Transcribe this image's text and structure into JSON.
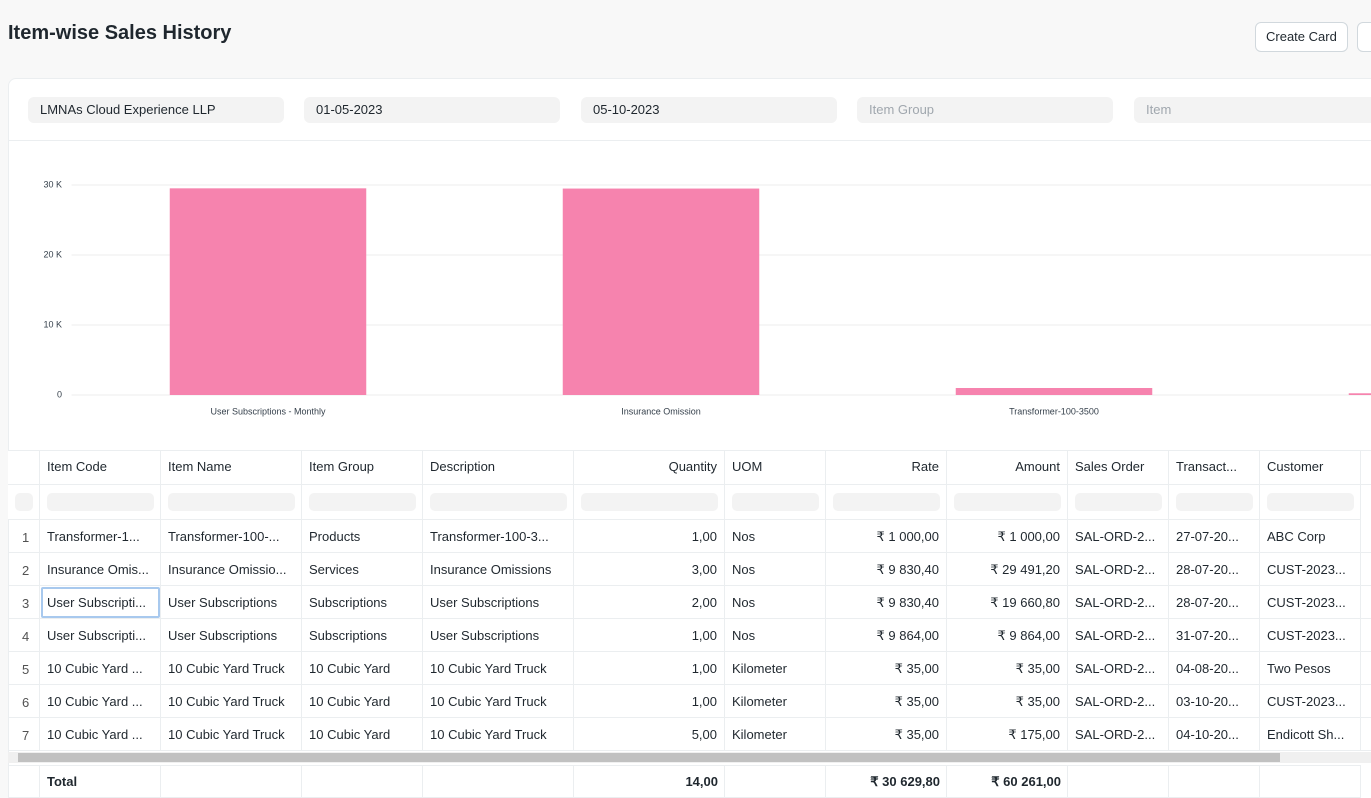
{
  "header": {
    "title": "Item-wise Sales History",
    "button": "Create Card"
  },
  "filters": {
    "values": [
      "LMNAs Cloud Experience LLP",
      "01-05-2023",
      "05-10-2023"
    ],
    "placeholders": [
      "Item Group",
      "Item"
    ]
  },
  "chart_data": {
    "type": "bar",
    "categories": [
      "User Subscriptions - Monthly",
      "Insurance Omission",
      "Transformer-100-3500",
      null
    ],
    "values": [
      29524.8,
      29491.2,
      1000,
      245
    ],
    "color": "#f683ae",
    "ylim": [
      0,
      30000
    ],
    "yticks": [
      0,
      {
        "value": 10000,
        "label": "10 K"
      },
      {
        "value": 20000,
        "label": "20 K"
      },
      {
        "value": 30000,
        "label": "30 K"
      }
    ],
    "grid": true
  },
  "table": {
    "columns": [
      "Item Code",
      "Item Name",
      "Item Group",
      "Description",
      "Quantity",
      "UOM",
      "Rate",
      "Amount",
      "Sales Order",
      "Transact...",
      "Customer"
    ],
    "rows": [
      {
        "no": 1,
        "cells": [
          "Transformer-1...",
          "Transformer-100-...",
          "Products",
          "Transformer-100-3...",
          "1,00",
          "Nos",
          "₹ 1 000,00",
          "₹ 1 000,00",
          "SAL-ORD-2...",
          "27-07-20...",
          "ABC Corp"
        ]
      },
      {
        "no": 2,
        "cells": [
          "Insurance Omis...",
          "Insurance Omissio...",
          "Services",
          "Insurance Omissions",
          "3,00",
          "Nos",
          "₹ 9 830,40",
          "₹ 29 491,20",
          "SAL-ORD-2...",
          "28-07-20...",
          "CUST-2023..."
        ]
      },
      {
        "no": 3,
        "cells": [
          "User Subscripti...",
          "User Subscriptions",
          "Subscriptions",
          "User Subscriptions",
          "2,00",
          "Nos",
          "₹ 9 830,40",
          "₹ 19 660,80",
          "SAL-ORD-2...",
          "28-07-20...",
          "CUST-2023..."
        ]
      },
      {
        "no": 4,
        "cells": [
          "User Subscripti...",
          "User Subscriptions",
          "Subscriptions",
          "User Subscriptions",
          "1,00",
          "Nos",
          "₹ 9 864,00",
          "₹ 9 864,00",
          "SAL-ORD-2...",
          "31-07-20...",
          "CUST-2023..."
        ]
      },
      {
        "no": 5,
        "cells": [
          "10 Cubic Yard ...",
          "10 Cubic Yard Truck",
          "10 Cubic Yard",
          "10 Cubic Yard Truck",
          "1,00",
          "Kilometer",
          "₹ 35,00",
          "₹ 35,00",
          "SAL-ORD-2...",
          "04-08-20...",
          "Two Pesos"
        ]
      },
      {
        "no": 6,
        "cells": [
          "10 Cubic Yard ...",
          "10 Cubic Yard Truck",
          "10 Cubic Yard",
          "10 Cubic Yard Truck",
          "1,00",
          "Kilometer",
          "₹ 35,00",
          "₹ 35,00",
          "SAL-ORD-2...",
          "03-10-20...",
          "CUST-2023..."
        ]
      },
      {
        "no": 7,
        "cells": [
          "10 Cubic Yard ...",
          "10 Cubic Yard Truck",
          "10 Cubic Yard",
          "10 Cubic Yard Truck",
          "5,00",
          "Kilometer",
          "₹ 35,00",
          "₹ 175,00",
          "SAL-ORD-2...",
          "04-10-20...",
          "Endicott Sh..."
        ]
      }
    ],
    "total": {
      "label": "Total",
      "quantity": "14,00",
      "rate": "₹ 30 629,80",
      "amount": "₹ 60 261,00"
    }
  }
}
